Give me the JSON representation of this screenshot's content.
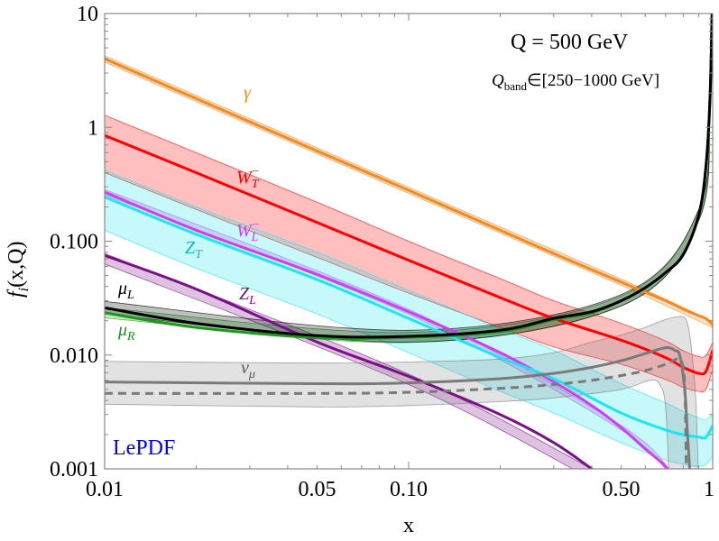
{
  "chart_data": {
    "type": "line",
    "xlabel": "x",
    "ylabel": {
      "base": "f",
      "sub": "i",
      "rest": "(x,Q)"
    },
    "xscale": "log",
    "yscale": "log",
    "xlim": [
      0.01,
      1
    ],
    "ylim": [
      0.001,
      10
    ],
    "x_ticks": [
      {
        "v": 0.01,
        "label": "0.01"
      },
      {
        "v": 0.05,
        "label": "0.05"
      },
      {
        "v": 0.1,
        "label": "0.10"
      },
      {
        "v": 0.5,
        "label": "0.50"
      },
      {
        "v": 1,
        "label": "1"
      }
    ],
    "y_ticks": [
      {
        "v": 10,
        "label": "10"
      },
      {
        "v": 1,
        "label": "1"
      },
      {
        "v": 0.1,
        "label": "0.100"
      },
      {
        "v": 0.01,
        "label": "0.010"
      },
      {
        "v": 0.001,
        "label": "0.001"
      }
    ],
    "grid": false,
    "annotations": {
      "scale": "Q = 500 GeV",
      "band": {
        "base": "Q",
        "sub": "band",
        "rest": "∈[250−1000 GeV]"
      },
      "brand": "LePDF"
    },
    "series": [
      {
        "id": "gamma",
        "label": {
          "base": "γ",
          "sub": "",
          "sup": ""
        },
        "color": "#f5891e",
        "style": "solid",
        "points": [
          [
            0.01,
            4.0
          ],
          [
            0.02,
            1.79
          ],
          [
            0.05,
            0.62
          ],
          [
            0.1,
            0.28
          ],
          [
            0.2,
            0.125
          ],
          [
            0.3,
            0.078
          ],
          [
            0.5,
            0.0437
          ],
          [
            0.7,
            0.03
          ],
          [
            0.8,
            0.0253
          ],
          [
            0.9,
            0.0222
          ],
          [
            0.95,
            0.0209
          ],
          [
            1.0,
            0.0185
          ]
        ],
        "band": {
          "upper": [
            [
              0.01,
              4.25
            ],
            [
              0.1,
              0.297
            ],
            [
              0.5,
              0.0465
            ],
            [
              1.0,
              0.0197
            ]
          ],
          "lower": [
            [
              0.01,
              3.75
            ],
            [
              0.1,
              0.263
            ],
            [
              0.5,
              0.041
            ],
            [
              1.0,
              0.0174
            ]
          ]
        }
      },
      {
        "id": "WT",
        "label": {
          "base": "W",
          "sub": "T",
          "sup": "−"
        },
        "color": "#ff0000",
        "style": "solid",
        "points": [
          [
            0.01,
            0.85
          ],
          [
            0.02,
            0.4
          ],
          [
            0.05,
            0.146
          ],
          [
            0.1,
            0.068
          ],
          [
            0.2,
            0.032
          ],
          [
            0.3,
            0.021
          ],
          [
            0.5,
            0.0135
          ],
          [
            0.7,
            0.0095
          ],
          [
            0.8,
            0.0078
          ],
          [
            0.9,
            0.0069
          ],
          [
            0.95,
            0.0072
          ],
          [
            1.0,
            0.011
          ]
        ],
        "band": {
          "upper": [
            [
              0.01,
              1.28
            ],
            [
              0.02,
              0.6
            ],
            [
              0.05,
              0.22
            ],
            [
              0.1,
              0.1
            ],
            [
              0.2,
              0.047
            ],
            [
              0.3,
              0.03
            ],
            [
              0.5,
              0.019
            ],
            [
              0.7,
              0.0133
            ],
            [
              0.8,
              0.0109
            ],
            [
              0.9,
              0.0097
            ],
            [
              0.95,
              0.0099
            ],
            [
              1.0,
              0.013
            ]
          ],
          "lower": [
            [
              0.01,
              0.4
            ],
            [
              0.02,
              0.19
            ],
            [
              0.05,
              0.072
            ],
            [
              0.1,
              0.035
            ],
            [
              0.2,
              0.0175
            ],
            [
              0.3,
              0.0118
            ],
            [
              0.5,
              0.0083
            ],
            [
              0.7,
              0.0061
            ],
            [
              0.8,
              0.0052
            ],
            [
              0.9,
              0.0048
            ],
            [
              0.95,
              0.005
            ],
            [
              1.0,
              0.0075
            ]
          ]
        }
      },
      {
        "id": "WL",
        "label": {
          "base": "W",
          "sub": "L",
          "sup": "−"
        },
        "color": "#d23cf5",
        "style": "solid",
        "points": [
          [
            0.01,
            0.27
          ],
          [
            0.02,
            0.125
          ],
          [
            0.05,
            0.051
          ],
          [
            0.1,
            0.024
          ],
          [
            0.2,
            0.0105
          ],
          [
            0.3,
            0.0058
          ],
          [
            0.4,
            0.0036
          ],
          [
            0.5,
            0.0023
          ],
          [
            0.6,
            0.0015
          ],
          [
            0.7,
            0.00105
          ],
          [
            0.75,
            0.0008
          ]
        ],
        "band": {
          "upper": [
            [
              0.01,
              0.285
            ],
            [
              0.1,
              0.0252
            ],
            [
              0.5,
              0.0024
            ],
            [
              0.75,
              0.00084
            ]
          ],
          "lower": [
            [
              0.01,
              0.256
            ],
            [
              0.1,
              0.0228
            ],
            [
              0.5,
              0.0022
            ],
            [
              0.75,
              0.00076
            ]
          ]
        }
      },
      {
        "id": "ZT",
        "label": {
          "base": "Z",
          "sub": "T",
          "sup": ""
        },
        "color": "#1ee6f0",
        "textColor": "#19b3b8",
        "style": "solid",
        "points": [
          [
            0.01,
            0.245
          ],
          [
            0.02,
            0.115
          ],
          [
            0.05,
            0.046
          ],
          [
            0.1,
            0.021
          ],
          [
            0.2,
            0.0095
          ],
          [
            0.3,
            0.0062
          ],
          [
            0.5,
            0.0031
          ],
          [
            0.7,
            0.0022
          ],
          [
            0.8,
            0.002
          ],
          [
            0.9,
            0.0019
          ],
          [
            0.95,
            0.0019
          ],
          [
            1.0,
            0.0024
          ]
        ],
        "band": {
          "upper": [
            [
              0.01,
              0.42
            ],
            [
              0.02,
              0.2
            ],
            [
              0.05,
              0.08
            ],
            [
              0.1,
              0.037
            ],
            [
              0.2,
              0.017
            ],
            [
              0.3,
              0.011
            ],
            [
              0.5,
              0.0056
            ],
            [
              0.7,
              0.0038
            ],
            [
              0.8,
              0.0032
            ],
            [
              0.9,
              0.0028
            ],
            [
              0.95,
              0.0027
            ],
            [
              1.0,
              0.003
            ]
          ],
          "lower": [
            [
              0.01,
              0.125
            ],
            [
              0.02,
              0.058
            ],
            [
              0.05,
              0.023
            ],
            [
              0.1,
              0.0105
            ],
            [
              0.2,
              0.0048
            ],
            [
              0.3,
              0.0031
            ],
            [
              0.5,
              0.0017
            ],
            [
              0.7,
              0.0012
            ],
            [
              0.8,
              0.0011
            ],
            [
              0.9,
              0.00105
            ],
            [
              0.95,
              0.0011
            ],
            [
              1.0,
              0.0013
            ]
          ]
        }
      },
      {
        "id": "ZL",
        "label": {
          "base": "Z",
          "sub": "L",
          "sup": ""
        },
        "color": "#7b0f88",
        "style": "solid",
        "points": [
          [
            0.01,
            0.075
          ],
          [
            0.02,
            0.038
          ],
          [
            0.05,
            0.013
          ],
          [
            0.1,
            0.0065
          ],
          [
            0.2,
            0.003
          ],
          [
            0.3,
            0.0017
          ],
          [
            0.4,
            0.001
          ],
          [
            0.45,
            0.0008
          ]
        ],
        "band": {
          "upper": [
            [
              0.01,
              0.078
            ],
            [
              0.1,
              0.0068
            ],
            [
              0.45,
              0.00084
            ]
          ],
          "lower": [
            [
              0.01,
              0.063
            ],
            [
              0.1,
              0.0055
            ],
            [
              0.45,
              0.00068
            ]
          ]
        }
      },
      {
        "id": "muR",
        "label": {
          "base": "μ",
          "sub": "R",
          "sup": ""
        },
        "color": "#1a9a1a",
        "style": "solid",
        "points": [
          [
            0.01,
            0.0235
          ],
          [
            0.02,
            0.0175
          ],
          [
            0.05,
            0.0142
          ],
          [
            0.1,
            0.0143
          ],
          [
            0.2,
            0.016
          ],
          [
            0.3,
            0.0205
          ],
          [
            0.4,
            0.0235
          ],
          [
            0.5,
            0.03
          ],
          [
            0.6,
            0.039
          ],
          [
            0.7,
            0.053
          ],
          [
            0.8,
            0.076
          ],
          [
            0.9,
            0.17
          ],
          [
            0.95,
            0.45
          ],
          [
            0.98,
            1.8
          ],
          [
            0.997,
            12
          ]
        ],
        "band": {
          "upper": [
            [
              0.01,
              0.026
            ],
            [
              0.1,
              0.0158
            ],
            [
              0.5,
              0.033
            ],
            [
              0.9,
              0.19
            ],
            [
              0.98,
              2.0
            ],
            [
              0.997,
              13
            ]
          ],
          "lower": [
            [
              0.01,
              0.0212
            ],
            [
              0.1,
              0.0129
            ],
            [
              0.5,
              0.027
            ],
            [
              0.9,
              0.153
            ],
            [
              0.98,
              1.6
            ],
            [
              0.997,
              11
            ]
          ]
        }
      },
      {
        "id": "muL",
        "label": {
          "base": "μ",
          "sub": "L",
          "sup": ""
        },
        "color": "#000000",
        "style": "solid",
        "points": [
          [
            0.01,
            0.026
          ],
          [
            0.02,
            0.019
          ],
          [
            0.05,
            0.0148
          ],
          [
            0.1,
            0.0146
          ],
          [
            0.2,
            0.0165
          ],
          [
            0.3,
            0.021
          ],
          [
            0.4,
            0.024
          ],
          [
            0.5,
            0.03
          ],
          [
            0.6,
            0.039
          ],
          [
            0.7,
            0.053
          ],
          [
            0.8,
            0.076
          ],
          [
            0.9,
            0.17
          ],
          [
            0.95,
            0.45
          ],
          [
            0.98,
            1.8
          ],
          [
            0.995,
            10
          ]
        ],
        "band": {
          "upper": [
            [
              0.01,
              0.0295
            ],
            [
              0.1,
              0.0165
            ],
            [
              0.5,
              0.034
            ],
            [
              0.9,
              0.19
            ],
            [
              0.98,
              2.0
            ],
            [
              0.995,
              11
            ]
          ],
          "lower": [
            [
              0.01,
              0.023
            ],
            [
              0.1,
              0.013
            ],
            [
              0.5,
              0.027
            ],
            [
              0.9,
              0.152
            ],
            [
              0.98,
              1.6
            ],
            [
              0.995,
              9
            ]
          ]
        }
      },
      {
        "id": "nu",
        "label": {
          "base": "ν",
          "sub": "μ",
          "sup": ""
        },
        "color": "#7a7a7a",
        "textColor": "#555555",
        "style": "solid",
        "points": [
          [
            0.01,
            0.0058
          ],
          [
            0.05,
            0.0056
          ],
          [
            0.1,
            0.0057
          ],
          [
            0.2,
            0.0062
          ],
          [
            0.3,
            0.0069
          ],
          [
            0.4,
            0.0078
          ],
          [
            0.5,
            0.0089
          ],
          [
            0.6,
            0.0103
          ],
          [
            0.7,
            0.0116
          ],
          [
            0.75,
            0.011
          ],
          [
            0.78,
            0.0098
          ],
          [
            0.81,
            0.0048
          ],
          [
            0.825,
            0.0022
          ],
          [
            0.84,
            0.001
          ],
          [
            0.845,
            0.0007
          ]
        ],
        "band": {
          "upper": [
            [
              0.01,
              0.0088
            ],
            [
              0.05,
              0.0085
            ],
            [
              0.1,
              0.0087
            ],
            [
              0.2,
              0.0092
            ],
            [
              0.3,
              0.0105
            ],
            [
              0.4,
              0.013
            ],
            [
              0.5,
              0.015
            ],
            [
              0.6,
              0.0175
            ],
            [
              0.7,
              0.0205
            ],
            [
              0.78,
              0.0218
            ],
            [
              0.82,
              0.02
            ],
            [
              0.85,
              0.012
            ],
            [
              0.88,
              0.004
            ],
            [
              0.9,
              0.0007
            ]
          ],
          "lower": [
            [
              0.01,
              0.0037
            ],
            [
              0.05,
              0.0035
            ],
            [
              0.1,
              0.0036
            ],
            [
              0.2,
              0.0039
            ],
            [
              0.3,
              0.0042
            ],
            [
              0.5,
              0.005
            ],
            [
              0.62,
              0.006
            ],
            [
              0.67,
              0.0055
            ],
            [
              0.7,
              0.0035
            ],
            [
              0.72,
              0.0007
            ]
          ]
        }
      },
      {
        "id": "nu-dashed",
        "label": null,
        "color": "#7a7a7a",
        "style": "dashed",
        "points": [
          [
            0.01,
            0.0046
          ],
          [
            0.05,
            0.0046
          ],
          [
            0.1,
            0.0047
          ],
          [
            0.2,
            0.0051
          ],
          [
            0.3,
            0.0055
          ],
          [
            0.4,
            0.006
          ],
          [
            0.5,
            0.0066
          ],
          [
            0.6,
            0.0073
          ],
          [
            0.7,
            0.0083
          ],
          [
            0.76,
            0.0092
          ],
          [
            0.79,
            0.0088
          ],
          [
            0.81,
            0.005
          ],
          [
            0.82,
            0.0007
          ]
        ]
      }
    ]
  }
}
